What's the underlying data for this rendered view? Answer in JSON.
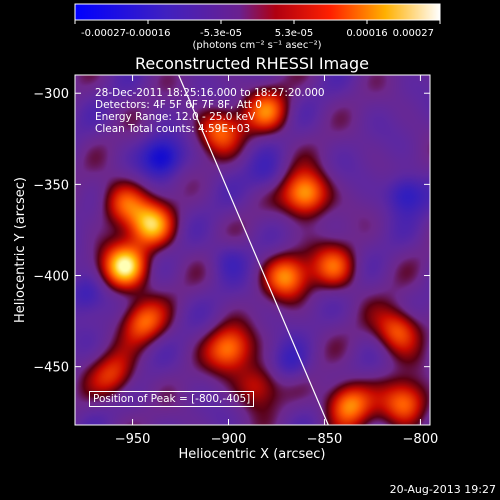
{
  "colorbar": {
    "ticks": [
      "-0.00027",
      "-0.00016",
      "-5.3e-05",
      "5.3e-05",
      "0.00016",
      "0.00027"
    ],
    "units": "(photons cm⁻² s⁻¹ asec⁻²)",
    "range": [
      -0.00027,
      0.00027
    ]
  },
  "chart_data": {
    "type": "heatmap",
    "title": "Reconstructed RHESSI Image",
    "xlabel": "Heliocentric X (arcsec)",
    "ylabel": "Heliocentric Y (arcsec)",
    "xlim": [
      -980,
      -795
    ],
    "ylim": [
      -482,
      -290
    ],
    "x_ticks": [
      -950,
      -900,
      -850,
      -800
    ],
    "x_tick_labels": [
      "−950",
      "−900",
      "−850",
      "−800"
    ],
    "y_ticks": [
      -300,
      -350,
      -400,
      -450
    ],
    "y_tick_labels": [
      "−300",
      "−350",
      "−400",
      "−450"
    ],
    "colormap": "blue-purple-red-yellow-white",
    "limb_line": [
      [
        -926,
        -290
      ],
      [
        -848,
        -482
      ]
    ],
    "hotspots": [
      {
        "x": -954,
        "y": -395,
        "intensity": 1.0
      },
      {
        "x": -940,
        "y": -372,
        "intensity": 0.8
      },
      {
        "x": -955,
        "y": -360,
        "intensity": 0.6
      },
      {
        "x": -945,
        "y": -425,
        "intensity": 0.6
      },
      {
        "x": -860,
        "y": -355,
        "intensity": 0.9
      },
      {
        "x": -870,
        "y": -400,
        "intensity": 0.7
      },
      {
        "x": -812,
        "y": -430,
        "intensity": 0.7
      },
      {
        "x": -900,
        "y": -440,
        "intensity": 0.7
      },
      {
        "x": -905,
        "y": -320,
        "intensity": 0.6
      },
      {
        "x": -880,
        "y": -310,
        "intensity": 0.6
      },
      {
        "x": -838,
        "y": -470,
        "intensity": 0.8
      },
      {
        "x": -808,
        "y": -470,
        "intensity": 0.7
      },
      {
        "x": -845,
        "y": -395,
        "intensity": 0.6
      },
      {
        "x": -960,
        "y": -455,
        "intensity": 0.5
      },
      {
        "x": -885,
        "y": -460,
        "intensity": 0.5
      }
    ],
    "coldspots": [
      {
        "x": -935,
        "y": -335,
        "intensity": 1.0
      },
      {
        "x": -808,
        "y": -355,
        "intensity": 0.8
      },
      {
        "x": -868,
        "y": -448,
        "intensity": 0.5
      },
      {
        "x": -975,
        "y": -410,
        "intensity": 0.6
      },
      {
        "x": -900,
        "y": -390,
        "intensity": 0.4
      },
      {
        "x": -880,
        "y": -345,
        "intensity": 0.4
      }
    ]
  },
  "info": {
    "time_range": "28-Dec-2011 18:25:16.000 to 18:27:20.000",
    "detectors": "Detectors: 4F 5F 6F 7F 8F, Att 0",
    "energy": "Energy Range: 12.0 - 25.0 keV",
    "clean": "Clean     Total counts: 4.59E+03",
    "peak": "Position of Peak = [-800,-405]"
  },
  "footer": {
    "date": "20-Aug-2013 19:27"
  }
}
